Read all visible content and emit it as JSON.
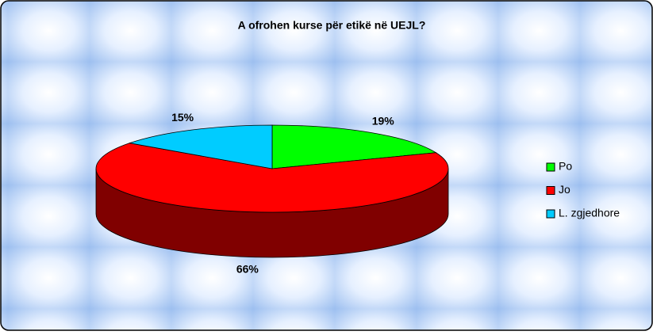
{
  "chart_data": {
    "type": "pie",
    "title": "A ofrohen kurse për etikë në UEJL?",
    "categories": [
      "Po",
      "Jo",
      "L. zgjedhore"
    ],
    "values": [
      19,
      66,
      15
    ],
    "value_labels": [
      "19%",
      "66%",
      "15%"
    ],
    "colors": [
      "#00ff00",
      "#ff0000",
      "#00ccff"
    ],
    "legend": "right"
  }
}
